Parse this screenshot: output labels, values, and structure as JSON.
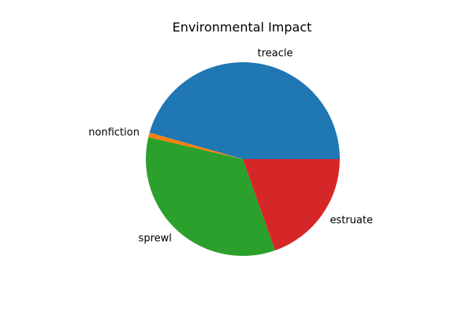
{
  "chart_data": {
    "type": "pie",
    "title": "Environmental Impact",
    "slices": [
      {
        "label": "treacle",
        "value": 45.6,
        "color": "#1f77b4"
      },
      {
        "label": "nonfiction",
        "value": 0.8,
        "color": "#ff7f0e"
      },
      {
        "label": "sprewl",
        "value": 34.0,
        "color": "#2ca02c"
      },
      {
        "label": "estruate",
        "value": 19.6,
        "color": "#d62728"
      }
    ],
    "start_angle_deg": 0,
    "direction": "counterclockwise",
    "legend": "none"
  }
}
